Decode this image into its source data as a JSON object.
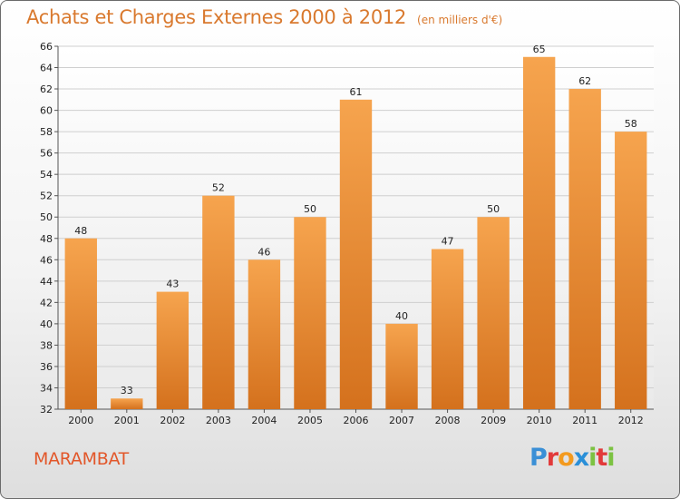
{
  "header": {
    "title": "Achats et Charges Externes 2000 à 2012",
    "subtitle": "(en milliers d'€)"
  },
  "footer": {
    "location": "MARAMBAT",
    "brand_letters": [
      "P",
      "r",
      "o",
      "x",
      "i",
      "t",
      "i"
    ],
    "brand_colors": [
      "#3a8fd6",
      "#e23a3a",
      "#f39a1e",
      "#2a8fd8",
      "#7cc242",
      "#e23a3a",
      "#7cc242"
    ]
  },
  "colors": {
    "bar_light": "#f6a44e",
    "bar_dark": "#d4711d",
    "grid": "#cfcfcf",
    "title": "#d9792e",
    "location": "#e2572a"
  },
  "chart_data": {
    "type": "bar",
    "title": "Achats et Charges Externes 2000 à 2012",
    "subtitle": "(en milliers d'€)",
    "categories": [
      "2000",
      "2001",
      "2002",
      "2003",
      "2004",
      "2005",
      "2006",
      "2007",
      "2008",
      "2009",
      "2010",
      "2011",
      "2012"
    ],
    "values": [
      48,
      33,
      43,
      52,
      46,
      50,
      61,
      40,
      47,
      50,
      65,
      62,
      58
    ],
    "ylim": [
      32,
      66
    ],
    "yticks": [
      32,
      34,
      36,
      38,
      40,
      42,
      44,
      46,
      48,
      50,
      52,
      54,
      56,
      58,
      60,
      62,
      64,
      66
    ],
    "grid": true,
    "xlabel": "",
    "ylabel": ""
  }
}
